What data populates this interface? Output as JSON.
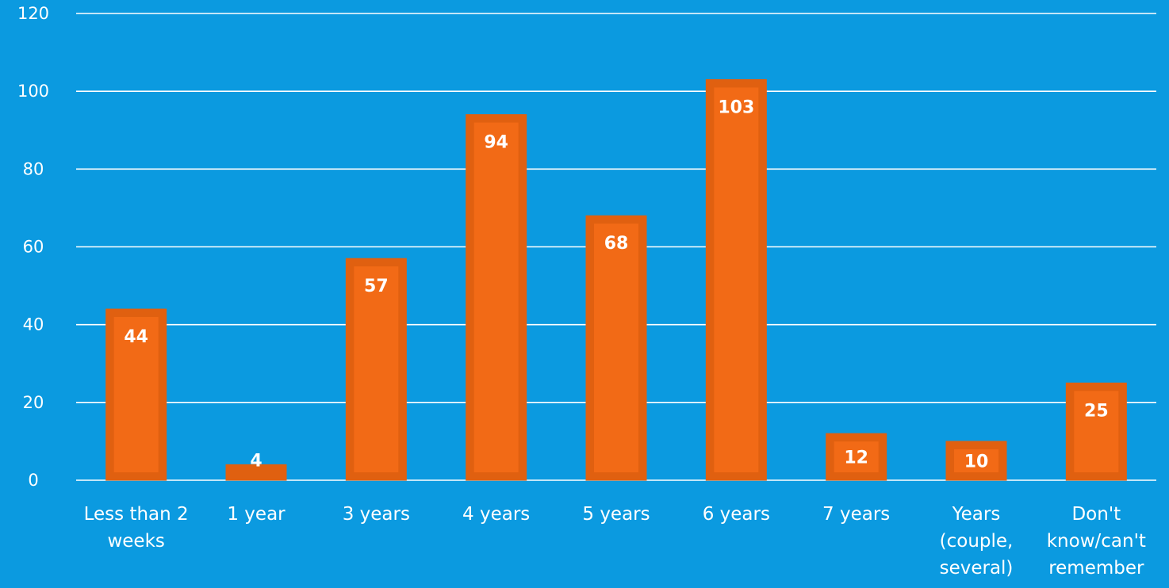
{
  "chart_data": {
    "type": "bar",
    "title": "",
    "xlabel": "",
    "ylabel": "",
    "categories": [
      [
        "Less than 2",
        "weeks"
      ],
      [
        "1 year"
      ],
      [
        "3 years"
      ],
      [
        "4 years"
      ],
      [
        "5 years"
      ],
      [
        "6 years"
      ],
      [
        "7 years"
      ],
      [
        "Years",
        "(couple,",
        "several)"
      ],
      [
        "Don't",
        "know/can't",
        "remember"
      ]
    ],
    "series": [
      {
        "values": [
          44,
          4,
          57,
          94,
          68,
          103,
          12,
          10,
          25
        ]
      }
    ],
    "ylim": [
      0,
      120
    ],
    "yticks": [
      0,
      20,
      40,
      60,
      80,
      100,
      120
    ],
    "grid": true,
    "legend": "none",
    "colors": {
      "background": "#0b9ae0",
      "bar_edge": "#e06010",
      "bar_fill": "#f26a16",
      "text": "#ffffff",
      "grid": "#ffffff"
    }
  }
}
